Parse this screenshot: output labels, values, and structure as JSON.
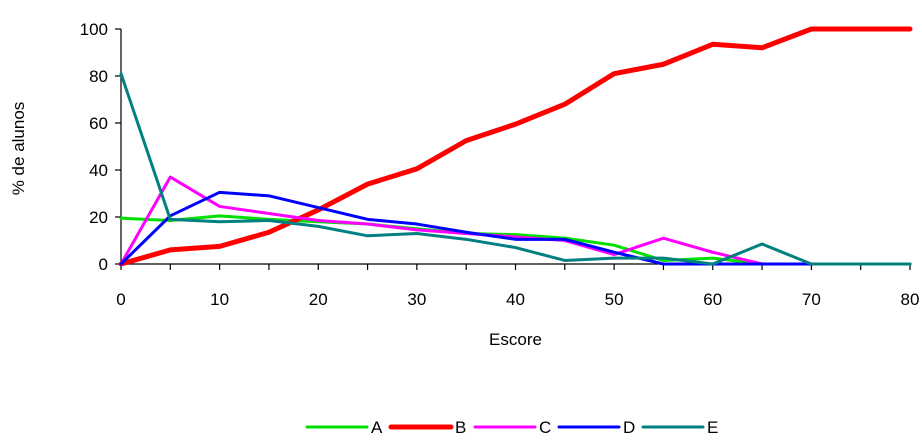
{
  "chart_data": {
    "type": "line",
    "xlabel": "Escore",
    "ylabel": "% de alunos",
    "xlim": [
      0,
      80
    ],
    "ylim": [
      0,
      100
    ],
    "x_ticks": [
      "0",
      "10",
      "20",
      "30",
      "40",
      "50",
      "60",
      "70",
      "80"
    ],
    "y_ticks": [
      "0",
      "20",
      "40",
      "60",
      "80",
      "100"
    ],
    "grid": false,
    "legend": "bottom",
    "x": [
      0,
      5,
      10,
      15,
      20,
      25,
      30,
      35,
      40,
      45,
      50,
      55,
      60,
      65,
      70,
      75,
      80
    ],
    "series": [
      {
        "name": "A",
        "color": "#00e000",
        "values": [
          19.5,
          18.5,
          20.5,
          19,
          18,
          17,
          15,
          13,
          12.5,
          11,
          8,
          1.5,
          2.5,
          0,
          0,
          0,
          0
        ]
      },
      {
        "name": "B",
        "color": "#ff0000",
        "values": [
          0,
          6,
          7.5,
          13.5,
          23,
          34,
          40.5,
          52.5,
          59.5,
          68,
          81,
          85,
          93.5,
          92,
          100,
          100,
          100
        ]
      },
      {
        "name": "C",
        "color": "#ff00ff",
        "values": [
          0,
          37,
          24.5,
          21.5,
          18.5,
          17,
          14.5,
          13,
          11.5,
          10,
          4,
          11,
          5,
          0,
          0,
          0,
          0
        ]
      },
      {
        "name": "D",
        "color": "#0000ff",
        "values": [
          0,
          20.5,
          30.5,
          29,
          24,
          19,
          17,
          13.5,
          10.5,
          10.5,
          5,
          0,
          0,
          0,
          0,
          0,
          0
        ]
      },
      {
        "name": "E",
        "color": "#008080",
        "values": [
          81,
          19,
          18,
          18.5,
          16,
          12,
          13,
          10.5,
          7,
          1.5,
          2.5,
          2.5,
          0,
          8.5,
          0,
          0,
          0
        ]
      }
    ]
  }
}
